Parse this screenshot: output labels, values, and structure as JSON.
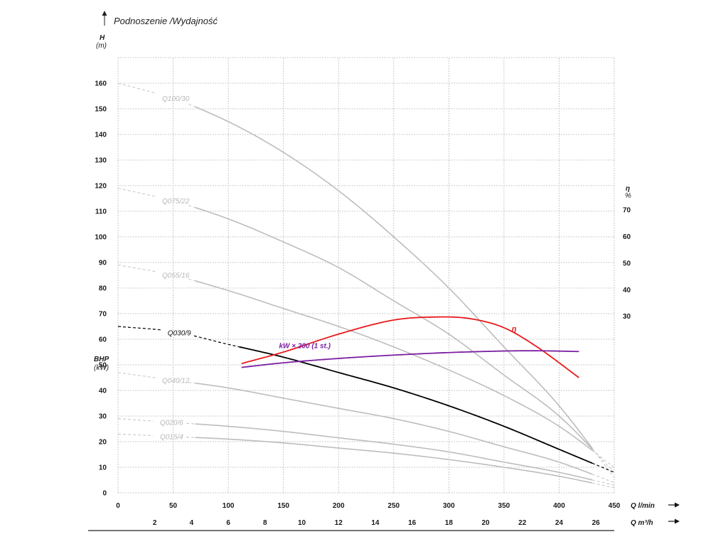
{
  "header": {
    "title": "Podnoszenie /Wydajność",
    "y_axis_label": "H",
    "y_axis_unit": "(m)",
    "bhp_label": "BHP",
    "bhp_unit": "(kW)",
    "eff_label": "η",
    "eff_unit": "%",
    "x_axis_label": "Q l/min",
    "x2_axis_label": "Q m³/h"
  },
  "colors": {
    "grid": "#a8a8a8",
    "head_curve": "#bdbdbd",
    "head_curve_dashed": "#c4c4c4",
    "active_curve": "#000000",
    "efficiency": "#e8191c",
    "power": "#7b1fa2",
    "text": "#1a1a1a"
  },
  "chart_data": {
    "type": "line",
    "x_unit": "l/min",
    "xlim": [
      0,
      450
    ],
    "x_ticks": [
      0,
      50,
      100,
      150,
      200,
      250,
      300,
      350,
      400,
      450
    ],
    "x2_ticks": [
      2,
      4,
      6,
      8,
      10,
      12,
      14,
      16,
      18,
      20,
      22,
      24,
      26
    ],
    "ylim": [
      0,
      170
    ],
    "y_ticks": [
      0,
      10,
      20,
      30,
      40,
      50,
      60,
      70,
      80,
      90,
      100,
      110,
      120,
      130,
      140,
      150,
      160
    ],
    "eff_ticks": [
      30,
      40,
      50,
      60,
      70
    ],
    "eff_ylim_map": {
      "eff_at_30": 69,
      "eff_at_70": 110.5
    },
    "head_curves": [
      {
        "name": "Q100/30",
        "dashed_until": 70,
        "solid_until": 430,
        "x": [
          0,
          50,
          100,
          150,
          200,
          250,
          300,
          350,
          400,
          450
        ],
        "y": [
          160,
          154,
          145,
          133,
          118,
          100,
          80,
          57,
          34,
          6
        ]
      },
      {
        "name": "Q075/22",
        "dashed_until": 70,
        "solid_until": 430,
        "x": [
          0,
          50,
          100,
          150,
          200,
          250,
          300,
          350,
          400,
          450
        ],
        "y": [
          119,
          114,
          107,
          98,
          88,
          75,
          62,
          46,
          30,
          8
        ]
      },
      {
        "name": "Q055/16",
        "dashed_until": 70,
        "solid_until": 430,
        "x": [
          0,
          50,
          100,
          150,
          200,
          250,
          300,
          350,
          400,
          450
        ],
        "y": [
          89,
          85,
          79,
          72,
          65,
          57,
          48,
          38,
          26,
          10
        ]
      },
      {
        "name": "Q040/12",
        "dashed_until": 70,
        "solid_until": 430,
        "x": [
          0,
          50,
          100,
          150,
          200,
          250,
          300,
          350,
          400,
          450
        ],
        "y": [
          47,
          44,
          41,
          37,
          33,
          29,
          24,
          18,
          12,
          4
        ]
      },
      {
        "name": "Q020/6",
        "dashed_until": 70,
        "solid_until": 430,
        "x": [
          0,
          50,
          100,
          150,
          200,
          250,
          300,
          350,
          400,
          450
        ],
        "y": [
          29,
          27.5,
          26,
          24,
          21.5,
          19,
          16,
          12,
          8,
          3
        ]
      },
      {
        "name": "Q015/4",
        "dashed_until": 70,
        "solid_until": 430,
        "x": [
          0,
          50,
          100,
          150,
          200,
          250,
          300,
          350,
          400,
          450
        ],
        "y": [
          23,
          22,
          21,
          19.5,
          17.5,
          15.5,
          13,
          10,
          6.5,
          2
        ]
      },
      {
        "name": "Q030/9",
        "active": true,
        "dashed_until": 110,
        "solid_until": 430,
        "x": [
          0,
          50,
          100,
          150,
          200,
          250,
          300,
          350,
          400,
          450
        ],
        "y": [
          65,
          63,
          58,
          53,
          47,
          41,
          34,
          26,
          17,
          8
        ]
      }
    ],
    "efficiency": {
      "name": "η",
      "x": [
        112,
        150,
        200,
        250,
        290,
        320,
        350,
        380,
        418
      ],
      "y": [
        50.5,
        55,
        62,
        67.5,
        68.7,
        68,
        64.5,
        57,
        45
      ]
    },
    "power": {
      "name": "kW × 200 (1 st.)",
      "x": [
        112,
        150,
        200,
        250,
        300,
        350,
        380,
        418
      ],
      "y": [
        49,
        50.8,
        52.5,
        53.8,
        54.8,
        55.4,
        55.5,
        55.2
      ]
    }
  }
}
